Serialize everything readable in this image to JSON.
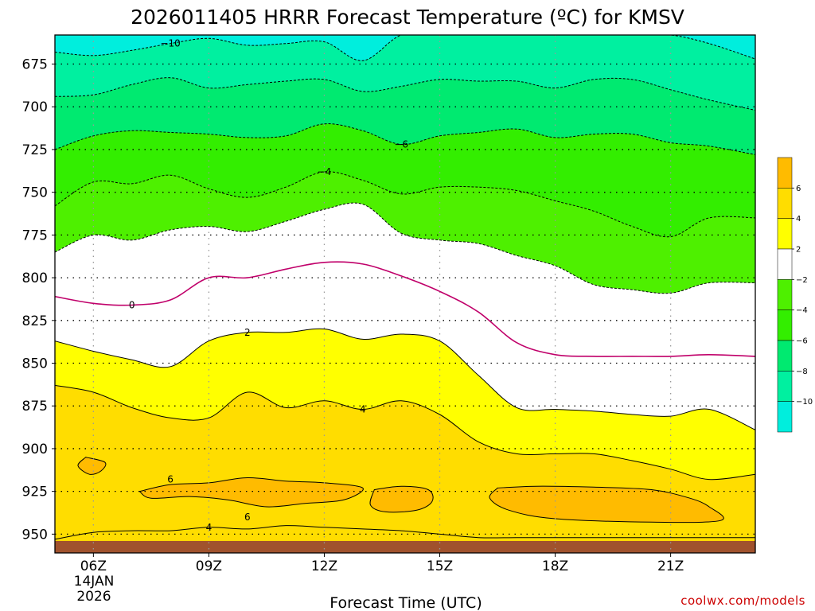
{
  "chart_data": {
    "type": "heatmap",
    "title": "2026011405 HRRR Forecast Temperature (ºC) for KMSV",
    "xlabel": "Forecast Time (UTC)",
    "ylabel": "",
    "credit": "coolwx.com/models",
    "y_axis": {
      "unit": "hPa",
      "inverted": true,
      "ylim": [
        961,
        658
      ],
      "ticks": [
        "675",
        "700",
        "725",
        "750",
        "775",
        "800",
        "825",
        "850",
        "875",
        "900",
        "925",
        "950"
      ],
      "tick_values": [
        675,
        700,
        725,
        750,
        775,
        800,
        825,
        850,
        875,
        900,
        925,
        950
      ]
    },
    "x_axis": {
      "unit": "hour UTC",
      "xlim": [
        5.0,
        23.2
      ],
      "ticks": [
        "06Z",
        "09Z",
        "12Z",
        "15Z",
        "18Z",
        "21Z"
      ],
      "tick_values": [
        6,
        9,
        12,
        15,
        18,
        21
      ],
      "date_line1": "14JAN",
      "date_line2": "2026"
    },
    "grid": true,
    "hours": [
      5,
      6,
      7,
      8,
      9,
      10,
      11,
      12,
      13,
      14,
      15,
      16,
      17,
      18,
      19,
      20,
      21,
      22,
      23.2
    ],
    "fill_bands": [
      {
        "range": "< -10",
        "color": "#00eedd",
        "boundary_name": "-10"
      },
      {
        "range": "-10 to -8",
        "color": "#00f0a0",
        "boundary_name": "-8"
      },
      {
        "range": "-8 to -6",
        "color": "#00ea70",
        "boundary_name": "-6"
      },
      {
        "range": "-6 to -4",
        "color": "#33ee00",
        "boundary_name": "-4"
      },
      {
        "range": "-4 to -2",
        "color": "#4ef000",
        "boundary_name": "-2"
      },
      {
        "range": "-2 to 2",
        "color": "#ffffff",
        "boundary_name": "2"
      },
      {
        "range": "2 to 4",
        "color": "#ffff00",
        "boundary_name": "4"
      },
      {
        "range": "4 to 6",
        "color": "#ffdd00",
        "boundary_name": null
      }
    ],
    "contours": [
      {
        "name": "-10",
        "label": "−10",
        "label_at": 8.0,
        "style": "dashed",
        "pressure": [
          668,
          670,
          667,
          663,
          660,
          664,
          663,
          662,
          673,
          658,
          658,
          658,
          658,
          658,
          658,
          658,
          658,
          663,
          672
        ]
      },
      {
        "name": "-8",
        "label": "",
        "style": "dashed",
        "pressure": [
          694,
          693,
          687,
          683,
          689,
          687,
          685,
          684,
          691,
          688,
          684,
          685,
          685,
          689,
          684,
          684,
          690,
          696,
          702
        ]
      },
      {
        "name": "-6",
        "label": "−6",
        "label_at": 14.0,
        "style": "dashed",
        "pressure": [
          725,
          717,
          714,
          715,
          716,
          718,
          717,
          710,
          714,
          722,
          717,
          715,
          713,
          718,
          716,
          716,
          721,
          723,
          728
        ]
      },
      {
        "name": "-4",
        "label": "−4",
        "label_at": 12.0,
        "style": "dashed",
        "pressure": [
          758,
          744,
          745,
          740,
          748,
          753,
          747,
          738,
          743,
          751,
          747,
          747,
          749,
          755,
          761,
          770,
          776,
          765,
          765
        ]
      },
      {
        "name": "-2",
        "label": "",
        "style": "dashed",
        "pressure": [
          785,
          775,
          778,
          772,
          770,
          773,
          767,
          760,
          757,
          774,
          778,
          780,
          787,
          793,
          804,
          807,
          809,
          803,
          803
        ]
      },
      {
        "name": "0",
        "label": "0",
        "label_at": 7.0,
        "style": "solid-magenta",
        "pressure": [
          811,
          815,
          816,
          813,
          800,
          800,
          795,
          791,
          792,
          799,
          808,
          820,
          838,
          845,
          846,
          846,
          846,
          845,
          846
        ]
      },
      {
        "name": "2",
        "label": "2",
        "label_at": 10.0,
        "style": "solid",
        "pressure": [
          837,
          843,
          848,
          852,
          837,
          832,
          832,
          830,
          836,
          833,
          837,
          857,
          876,
          877,
          878,
          880,
          881,
          877,
          889
        ]
      },
      {
        "name": "4",
        "label": "4",
        "label_at": 13.0,
        "style": "solid",
        "pressure": [
          863,
          867,
          876,
          882,
          882,
          867,
          876,
          872,
          877,
          872,
          880,
          896,
          903,
          903,
          903,
          907,
          912,
          918,
          915
        ]
      },
      {
        "name": "4b",
        "label": "4",
        "label_at": 9.0,
        "style": "solid",
        "pressure": [
          953,
          949,
          948,
          948,
          946,
          947,
          945,
          946,
          947,
          948,
          950,
          952,
          952,
          952,
          952,
          952,
          952,
          952,
          952
        ]
      }
    ],
    "warm_pockets": [
      {
        "name": "6",
        "label": "6",
        "label_at": 8.0,
        "approx_center": [
          10.5,
          927
        ],
        "value": "> 6"
      },
      {
        "name": "6b",
        "label": "6",
        "label_at": 10.0,
        "approx_center": [
          10.5,
          937
        ],
        "value": "> 6"
      },
      {
        "name": "6c",
        "label": "",
        "approx_center": [
          14.0,
          932
        ],
        "value": "> 6"
      },
      {
        "name": "6d",
        "label": "",
        "approx_center": [
          6.0,
          910
        ],
        "value": "> 6"
      },
      {
        "name": "6e",
        "label": "",
        "approx_center": [
          19.5,
          936
        ],
        "value": "> 6"
      }
    ],
    "terrain": {
      "color": "#a0522d",
      "surface_pressure": 954,
      "description": "brown ground layer near 954 hPa"
    },
    "colorbar": {
      "labels": [
        "6",
        "4",
        "2",
        "−2",
        "−4",
        "−6",
        "−8",
        "−10"
      ],
      "colors": [
        "#ffbb00",
        "#ffdd00",
        "#ffff00",
        "#ffffff",
        "#4ef000",
        "#33ee00",
        "#00ea70",
        "#00f0a0",
        "#00eedd"
      ]
    }
  }
}
